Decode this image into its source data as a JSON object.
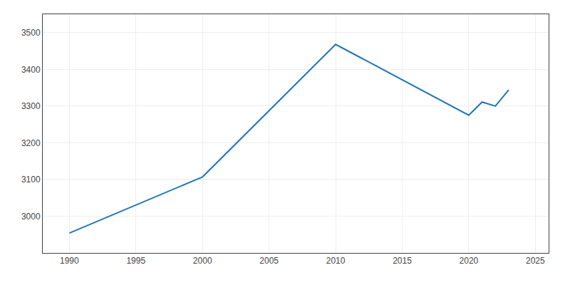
{
  "chart_data": {
    "type": "line",
    "x": [
      1990,
      2000,
      2010,
      2020,
      2021,
      2022,
      2023
    ],
    "values": [
      2954,
      3107,
      3468,
      3275,
      3311,
      3300,
      3344
    ],
    "xlim": [
      1988,
      2026
    ],
    "ylim": [
      2900,
      3550
    ],
    "xticks": [
      1990,
      1995,
      2000,
      2005,
      2010,
      2015,
      2020,
      2025
    ],
    "yticks": [
      3000,
      3100,
      3200,
      3300,
      3400,
      3500
    ],
    "grid": true
  }
}
